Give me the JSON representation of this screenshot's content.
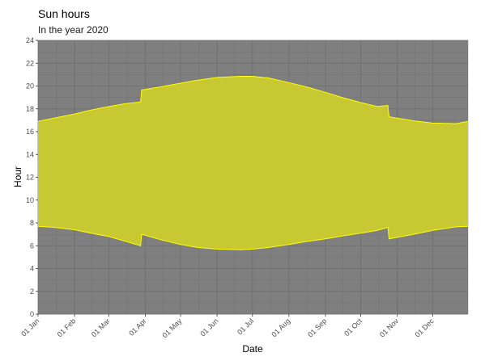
{
  "chart_data": {
    "type": "area",
    "title": "Sun hours",
    "subtitle": "In the year 2020",
    "xlabel": "Date",
    "ylabel": "Hour",
    "ylim": [
      0,
      24
    ],
    "yticks": [
      0,
      2,
      4,
      6,
      8,
      10,
      12,
      14,
      16,
      18,
      20,
      22,
      24
    ],
    "xlim": [
      "2020-01-01",
      "2020-12-31"
    ],
    "xticks": [
      {
        "date": "2020-01-01",
        "label": "01 Jan"
      },
      {
        "date": "2020-02-01",
        "label": "01 Feb"
      },
      {
        "date": "2020-03-01",
        "label": "01 Mar"
      },
      {
        "date": "2020-04-01",
        "label": "01 Apr"
      },
      {
        "date": "2020-05-01",
        "label": "01 May"
      },
      {
        "date": "2020-06-01",
        "label": "01 Jun"
      },
      {
        "date": "2020-07-01",
        "label": "01 Jul"
      },
      {
        "date": "2020-08-01",
        "label": "01 Aug"
      },
      {
        "date": "2020-09-01",
        "label": "01 Sep"
      },
      {
        "date": "2020-10-01",
        "label": "01 Oct"
      },
      {
        "date": "2020-11-01",
        "label": "01 Nov"
      },
      {
        "date": "2020-12-01",
        "label": "01 Dec"
      }
    ],
    "grid": true,
    "colors": {
      "panel": "#7f7f7f",
      "grid": "#6e6e6e",
      "fill": "#c8c832",
      "line": "#ffff00"
    },
    "series": [
      {
        "x": [
          "2020-01-01",
          "2020-01-15",
          "2020-02-01",
          "2020-02-15",
          "2020-03-01",
          "2020-03-15",
          "2020-03-28",
          "2020-03-29",
          "2020-04-15",
          "2020-05-01",
          "2020-05-15",
          "2020-06-01",
          "2020-06-21",
          "2020-07-01",
          "2020-07-15",
          "2020-08-01",
          "2020-08-15",
          "2020-09-01",
          "2020-09-15",
          "2020-10-01",
          "2020-10-15",
          "2020-10-24",
          "2020-10-25",
          "2020-11-15",
          "2020-12-01",
          "2020-12-21",
          "2020-12-31"
        ],
        "sunrise": [
          7.7,
          7.6,
          7.4,
          7.1,
          6.8,
          6.4,
          6.0,
          7.0,
          6.5,
          6.1,
          5.85,
          5.7,
          5.65,
          5.7,
          5.85,
          6.1,
          6.35,
          6.6,
          6.85,
          7.1,
          7.35,
          7.6,
          6.6,
          7.0,
          7.35,
          7.65,
          7.7
        ],
        "sunset": [
          16.9,
          17.2,
          17.55,
          17.9,
          18.2,
          18.45,
          18.6,
          19.65,
          19.95,
          20.25,
          20.5,
          20.75,
          20.85,
          20.85,
          20.7,
          20.3,
          19.95,
          19.45,
          19.0,
          18.55,
          18.2,
          18.3,
          17.3,
          16.95,
          16.75,
          16.7,
          16.9
        ]
      }
    ]
  }
}
